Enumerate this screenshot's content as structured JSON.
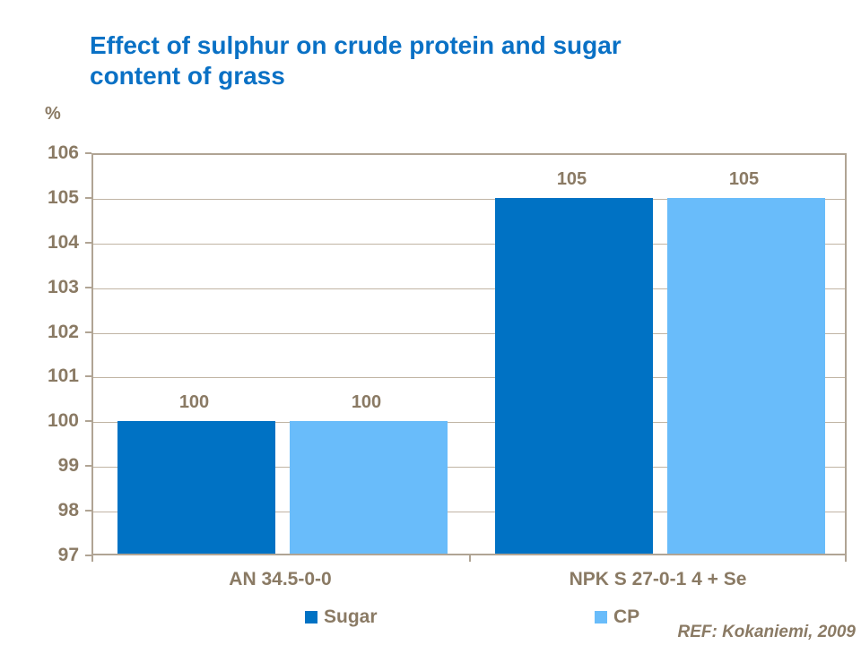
{
  "title": {
    "line1": "Effect of sulphur on crude protein and sugar",
    "line2": "content of grass"
  },
  "footer": {
    "ref_label": "REF: Kokaniemi, 2009"
  },
  "colors": {
    "title": "#0A71C5",
    "sugar": "#0072C4",
    "cp": "#69BCFA",
    "text": "#8A7A64",
    "grid": "#C0B4A4",
    "axis": "#B0A494"
  },
  "chart_data": {
    "type": "bar",
    "title": "Effect of sulphur on crude protein and sugar content of grass",
    "ylabel": "%",
    "xlabel": "",
    "ylim": [
      97,
      106
    ],
    "yticks": [
      97,
      98,
      99,
      100,
      101,
      102,
      103,
      104,
      105,
      106
    ],
    "grid": true,
    "legend_position": "bottom",
    "categories": [
      "AN 34.5-0-0",
      "NPK S 27-0-1 4 + Se"
    ],
    "series": [
      {
        "name": "Sugar",
        "color_key": "sugar",
        "values": [
          100,
          105
        ]
      },
      {
        "name": "CP",
        "color_key": "cp",
        "values": [
          100,
          105
        ]
      }
    ],
    "annotation": "REF: Kokaniemi, 2009"
  }
}
